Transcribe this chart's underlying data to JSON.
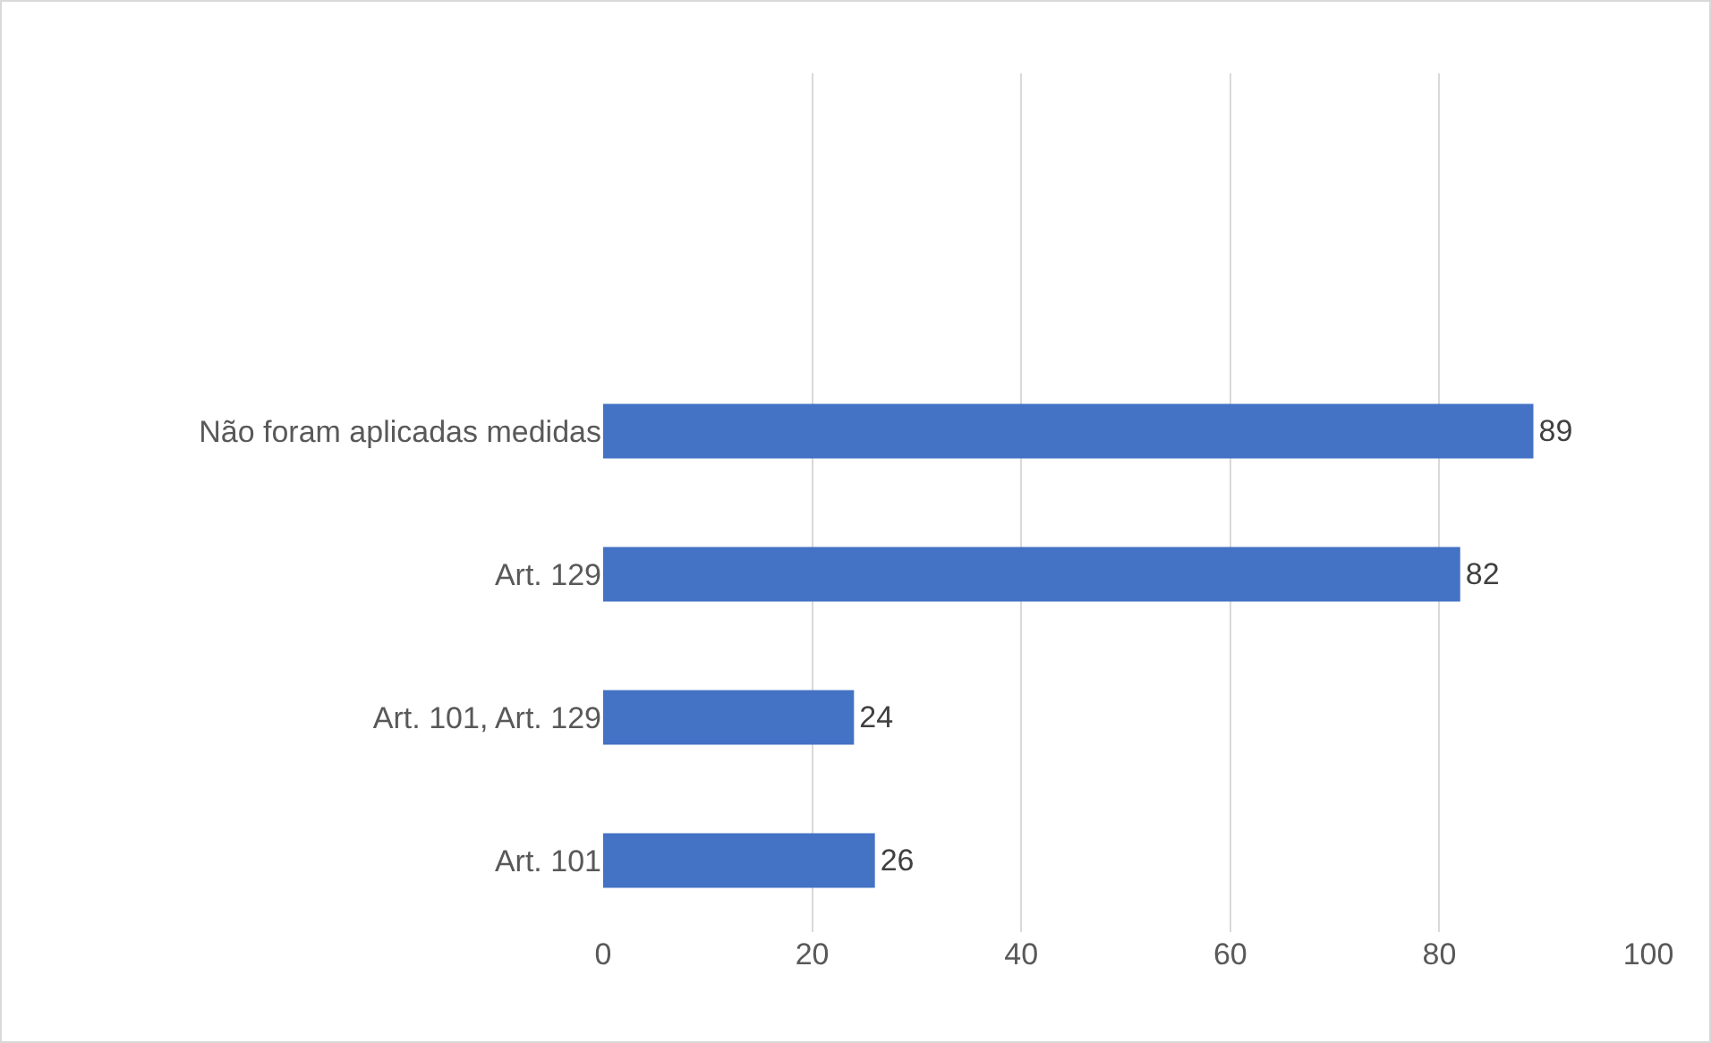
{
  "chart_data": {
    "type": "bar",
    "orientation": "horizontal",
    "categories": [
      "Não foram aplicadas medidas",
      "Art. 129",
      "Art. 101, Art. 129",
      "Art. 101"
    ],
    "values": [
      89,
      82,
      24,
      26
    ],
    "color": "#4472c4",
    "xlim": [
      0,
      100
    ],
    "xticks": [
      0,
      20,
      40,
      60,
      80,
      100
    ],
    "grid": "x",
    "data_labels": true
  }
}
